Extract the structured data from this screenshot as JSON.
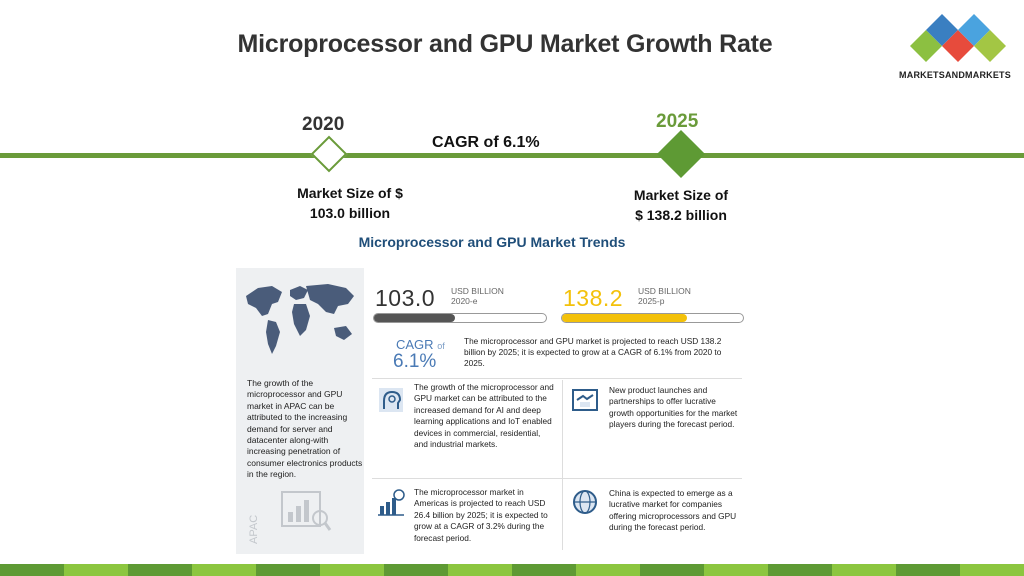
{
  "slide": {
    "title": "Microprocessor and GPU Market Growth Rate"
  },
  "logo": {
    "brand_text": "MARKETSANDMARKETS",
    "icon": "diamond-cluster-logo",
    "colors": [
      "#3a7fc1",
      "#e74b3c",
      "#8cc041",
      "#4aa3df",
      "#a3c644"
    ]
  },
  "timeline": {
    "start_year": "2020",
    "end_year": "2025",
    "cagr_label": "CAGR of 6.1%",
    "start_size_line1": "Market Size of $",
    "start_size_line2": "103.0 billion",
    "end_size_line1": "Market Size of",
    "end_size_line2": "$ 138.2 billion",
    "line_color": "#6a9b3a"
  },
  "infographic": {
    "title": "Microprocessor and GPU Market Trends",
    "value_2020": "103.0",
    "unit_2020_line1": "USD BILLION",
    "unit_2020_line2": "2020-e",
    "value_2025": "138.2",
    "unit_2025_line1": "USD BILLION",
    "unit_2025_line2": "2025-p",
    "bar_2020_fill": 0.47,
    "bar_2025_fill": 0.69,
    "bar_2020_color": "#555555",
    "bar_2025_color": "#f3c10a",
    "cagr_label": "CAGR",
    "cagr_of": "of",
    "cagr_value": "6.1%",
    "projection_text": "The microprocessor and GPU market is projected to reach USD 138.2 billion by 2025; it is expected to grow at a CAGR of 6.1% from 2020 to 2025.",
    "apac_text": "The growth of the microprocessor and GPU market in APAC can be attributed to the increasing demand for server and datacenter along-with increasing penetration of consumer electronics products in the region.",
    "apac_label": "APAC",
    "cards": [
      {
        "icon": "ai-head-icon",
        "text": "The growth of the microprocessor and GPU market can be attributed to the increased demand for AI and deep learning applications and IoT enabled devices in commercial, residential, and industrial markets."
      },
      {
        "icon": "handshake-icon",
        "text": "New product launches and partnerships to offer lucrative growth opportunities for the market players during the forecast period."
      },
      {
        "icon": "growth-bar-icon",
        "text": "The microprocessor market in Americas is projected to reach USD 26.4 billion by 2025; it is expected to grow at a CAGR of 3.2% during the forecast period."
      },
      {
        "icon": "globe-icon",
        "text": "China is expected to emerge as a lucrative market for companies offering microprocessors and GPU during the forecast period."
      }
    ]
  },
  "footer": {
    "strip_colors": [
      "#5e9a34",
      "#8cc63f"
    ]
  }
}
